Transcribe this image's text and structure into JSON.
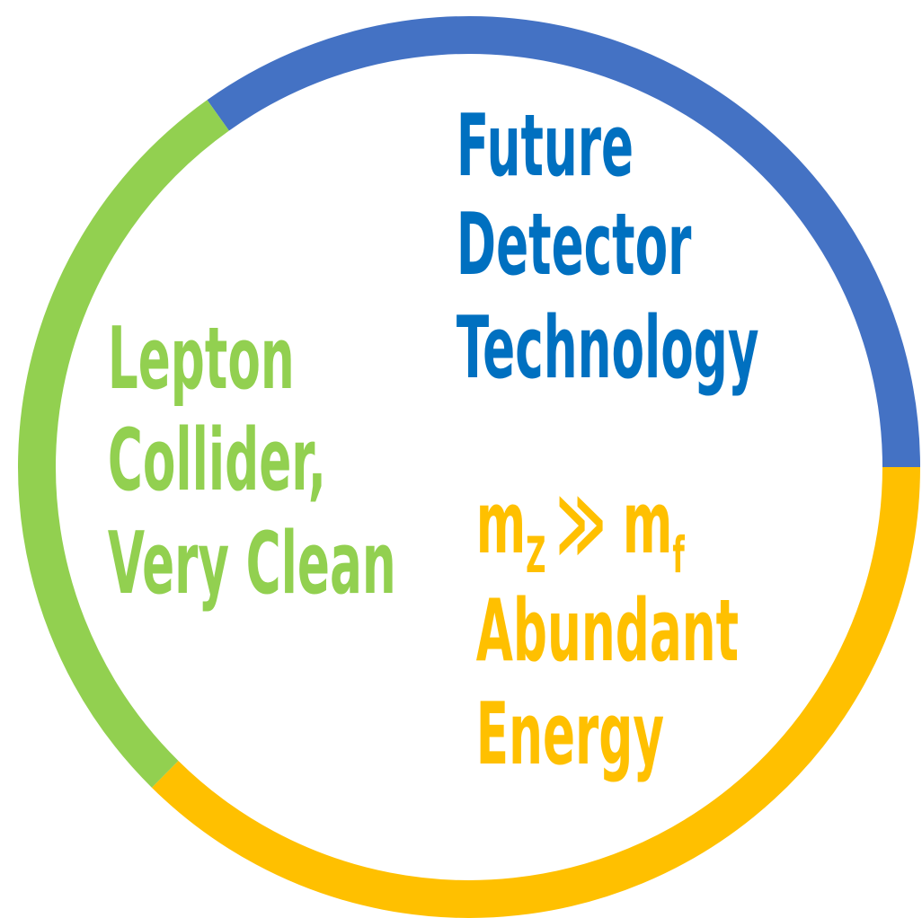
{
  "technology": {
    "lines": [
      "Future",
      "Detector",
      "Technology"
    ]
  },
  "collider": {
    "lines": [
      "Lepton",
      "Collider,",
      "Very Clean"
    ]
  },
  "energy": {
    "formula": {
      "m1": "m",
      "sub1": "Z",
      "op": "≫ m",
      "sub2": "f"
    },
    "lines": [
      "Abundant",
      "Energy"
    ]
  }
}
